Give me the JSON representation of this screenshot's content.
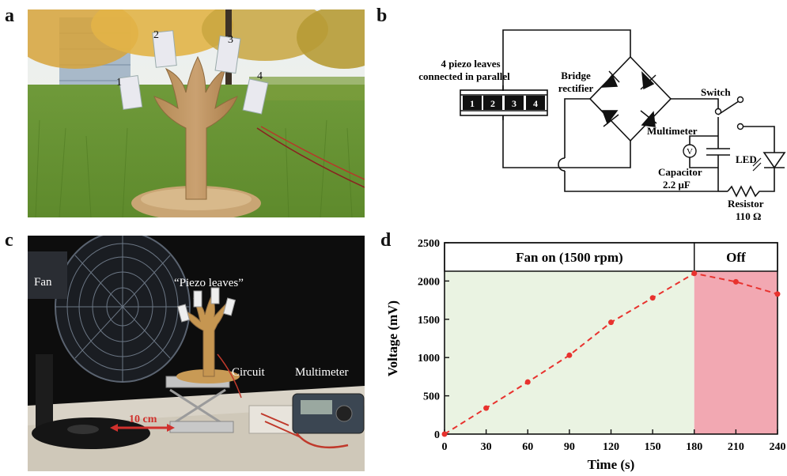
{
  "panels": {
    "a": "a",
    "b": "b",
    "c": "c",
    "d": "d"
  },
  "photo_a": {
    "leaf_numbers": [
      "1",
      "2",
      "3",
      "4"
    ]
  },
  "circuit": {
    "piezo_label_line1": "4 piezo leaves",
    "piezo_label_line2": "connected in parallel",
    "cells": [
      "1",
      "2",
      "3",
      "4"
    ],
    "rectifier_line1": "Bridge",
    "rectifier_line2": "rectifier",
    "switch": "Switch",
    "multimeter": "Multimeter",
    "voltmeter_symbol": "V",
    "capacitor_line1": "Capacitor",
    "capacitor_line2": "2.2 μF",
    "led": "LED",
    "resistor_line1": "Resistor",
    "resistor_line2": "110 Ω"
  },
  "photo_c": {
    "fan": "Fan",
    "piezo_leaves": "“Piezo leaves”",
    "circuit": "Circuit",
    "multimeter": "Multimeter",
    "distance": "10 cm"
  },
  "chart_data": {
    "type": "line",
    "xlabel": "Time (s)",
    "ylabel": "Voltage (mV)",
    "xlim": [
      0,
      240
    ],
    "ylim": [
      0,
      2500
    ],
    "xticks": [
      0,
      30,
      60,
      90,
      120,
      150,
      180,
      210,
      240
    ],
    "yticks": [
      0,
      500,
      1000,
      1500,
      2000,
      2500
    ],
    "regions": [
      {
        "label": "Fan on (1500 rpm)",
        "from": 0,
        "to": 180,
        "color": "#eaf3e2"
      },
      {
        "label": "Off",
        "from": 180,
        "to": 240,
        "color": "#f2a8b2"
      }
    ],
    "series": [
      {
        "x": [
          0,
          30,
          60,
          90,
          120,
          150,
          180,
          210,
          240
        ],
        "values": [
          0,
          340,
          680,
          1030,
          1460,
          1780,
          2100,
          1990,
          1830
        ],
        "color": "#e8322e"
      }
    ],
    "grid": false
  }
}
